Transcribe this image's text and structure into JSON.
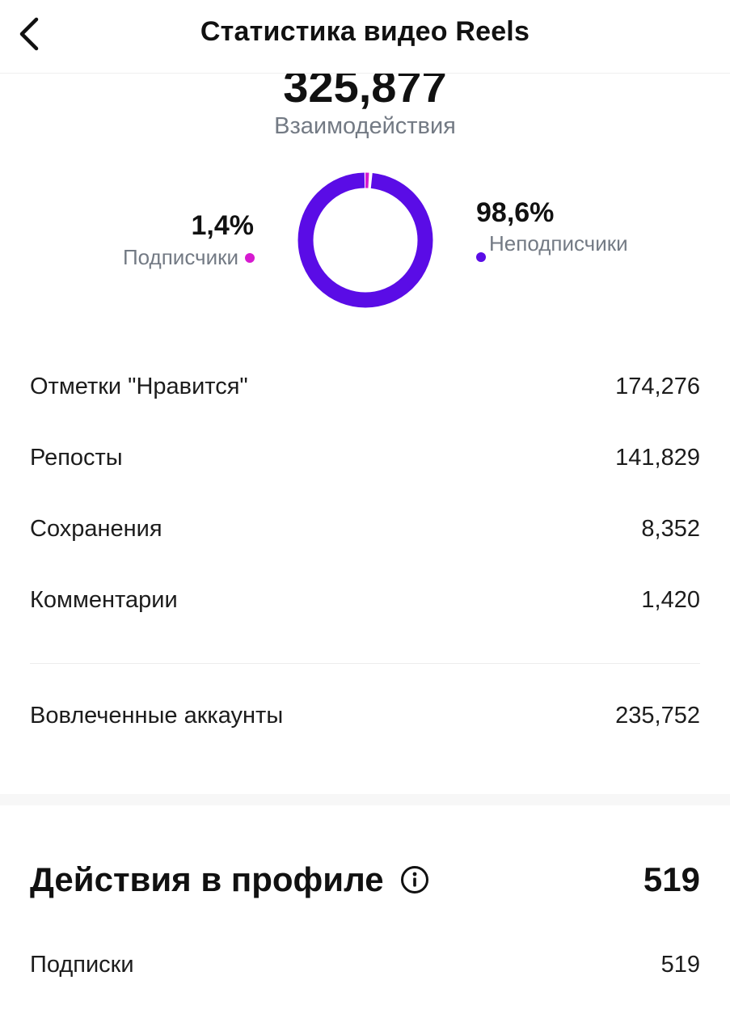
{
  "header": {
    "title": "Статистика видео Reels",
    "back_icon": "chevron-left-icon"
  },
  "interactions": {
    "total": "325,877",
    "label": "Взаимодействия"
  },
  "chart_data": {
    "type": "pie",
    "categories": [
      "Подписчики",
      "Неподписчики"
    ],
    "values": [
      1.4,
      98.6
    ],
    "colors": [
      "#d61ad0",
      "#5a0ce6"
    ],
    "labels": [
      "1,4%",
      "98,6%"
    ],
    "style": "donut"
  },
  "legend": {
    "followers": {
      "pct": "1,4%",
      "label": "Подписчики",
      "color": "#d61ad0"
    },
    "non_followers": {
      "pct": "98,6%",
      "label": "Неподписчики",
      "color": "#5a0ce6"
    }
  },
  "metrics": [
    {
      "label": "Отметки \"Нравится\"",
      "value": "174,276"
    },
    {
      "label": "Репосты",
      "value": "141,829"
    },
    {
      "label": "Сохранения",
      "value": "8,352"
    },
    {
      "label": "Комментарии",
      "value": "1,420"
    }
  ],
  "engaged": {
    "label": "Вовлеченные аккаунты",
    "value": "235,752"
  },
  "profile_actions": {
    "title": "Действия в профиле",
    "total": "519",
    "info_icon": "info-icon",
    "rows": [
      {
        "label": "Подписки",
        "value": "519"
      }
    ]
  }
}
